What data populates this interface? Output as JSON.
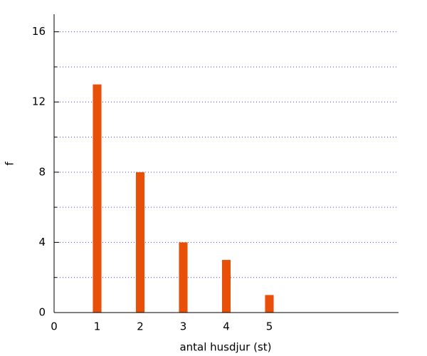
{
  "chart_data": {
    "type": "bar",
    "x": [
      1,
      2,
      3,
      4,
      5
    ],
    "values": [
      13,
      8,
      4,
      3,
      1
    ],
    "color": "#e8500a",
    "bar_width": 0.2,
    "xlabel": "antal husdjur (st)",
    "ylabel": "f",
    "xlim": [
      0,
      8
    ],
    "xticks": [
      0,
      1,
      2,
      3,
      4,
      5
    ],
    "ylim": [
      0,
      17
    ],
    "yticks": [
      0,
      4,
      8,
      12,
      16
    ],
    "minor_yticks": [
      2,
      6,
      10,
      14
    ],
    "grid": true,
    "grid_color": "#4444dd"
  }
}
